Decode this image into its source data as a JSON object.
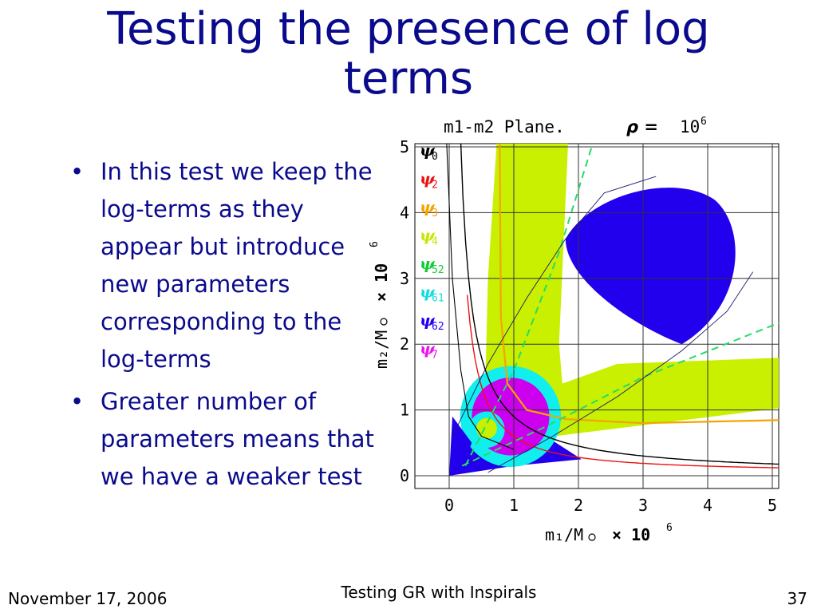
{
  "slide": {
    "title_line1": "Testing the presence of log",
    "title_line2": "terms",
    "bullets": [
      "In this test we keep the log-terms as they appear but introduce new parameters corresponding to the log-terms",
      "Greater number of parameters means that we have a weaker test"
    ],
    "footer_date": "November 17, 2006",
    "footer_center": "Testing GR with Inspirals",
    "page_number": "37"
  },
  "chart_data": {
    "type": "region-plot",
    "title_left": "m1-m2 Plane.",
    "title_rho": "ρ =",
    "title_rho_value": "10",
    "title_rho_exp": "6",
    "xlabel": "m₁/M",
    "xlabel_suffix": "× 10",
    "xlabel_exp": "6",
    "ylabel": "m₂/M",
    "ylabel_suffix": "× 10",
    "ylabel_exp": "6",
    "xlim": [
      -0.5,
      5.1
    ],
    "ylim": [
      -0.2,
      5.0
    ],
    "xticks": [
      "0",
      "1",
      "2",
      "3",
      "4",
      "5"
    ],
    "yticks": [
      "0",
      "1",
      "2",
      "3",
      "4",
      "5"
    ],
    "grid": true,
    "legend": [
      {
        "sym": "ψ",
        "sub": "0",
        "color": "#000000"
      },
      {
        "sym": "ψ",
        "sub": "2",
        "color": "#ee1111"
      },
      {
        "sym": "ψ",
        "sub": "3",
        "color": "#f5a400"
      },
      {
        "sym": "ψ",
        "sub": "4",
        "color": "#c8e600"
      },
      {
        "sym": "ψ",
        "sub": "52",
        "color": "#11cc33"
      },
      {
        "sym": "ψ",
        "sub": "61",
        "color": "#11dddd"
      },
      {
        "sym": "ψ",
        "sub": "62",
        "color": "#2200ee"
      },
      {
        "sym": "ψ",
        "sub": "7",
        "color": "#ee11ee"
      }
    ],
    "colors": {
      "psi0": "#000000",
      "psi2": "#ee1111",
      "psi3": "#f5a400",
      "psi4": "#c8f000",
      "psi52": "#22dd66",
      "psi61": "#11eeee",
      "psi62": "#2200ee",
      "psi7": "#cc00ee"
    }
  }
}
